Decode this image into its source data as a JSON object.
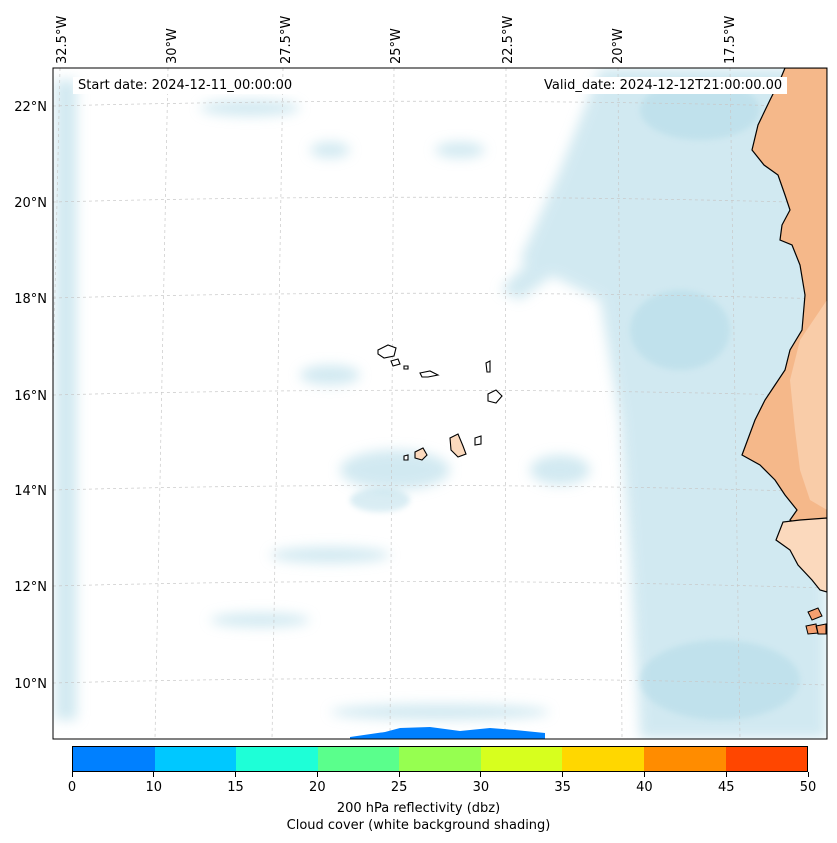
{
  "map": {
    "start_date": "Start date: 2024-12-11_00:00:00",
    "valid_date": "Valid_date: 2024-12-12T21:00:00.00",
    "lon_labels": [
      "32.5°W",
      "30°W",
      "27.5°W",
      "25°W",
      "22.5°W",
      "20°W",
      "17.5°W"
    ],
    "lat_labels": [
      "22°N",
      "20°N",
      "18°N",
      "16°N",
      "14°N",
      "12°N",
      "10°N"
    ],
    "colors": {
      "land": "#f5b88a",
      "land_light": "#fbd9bd",
      "cloud": "#add8e6",
      "coast": "#000000",
      "grid": "#c8c8c8"
    }
  },
  "colorbar": {
    "title": "200 hPa reflectivity (dbz)",
    "subtitle": "Cloud cover (white background shading)",
    "ticks": [
      "0",
      "10",
      "15",
      "20",
      "25",
      "30",
      "35",
      "40",
      "45",
      "50"
    ],
    "colors": [
      "#0080ff",
      "#00c8ff",
      "#1effd7",
      "#5aff8c",
      "#96ff50",
      "#d7ff1e",
      "#ffd700",
      "#ff8c00",
      "#ff4600"
    ]
  }
}
